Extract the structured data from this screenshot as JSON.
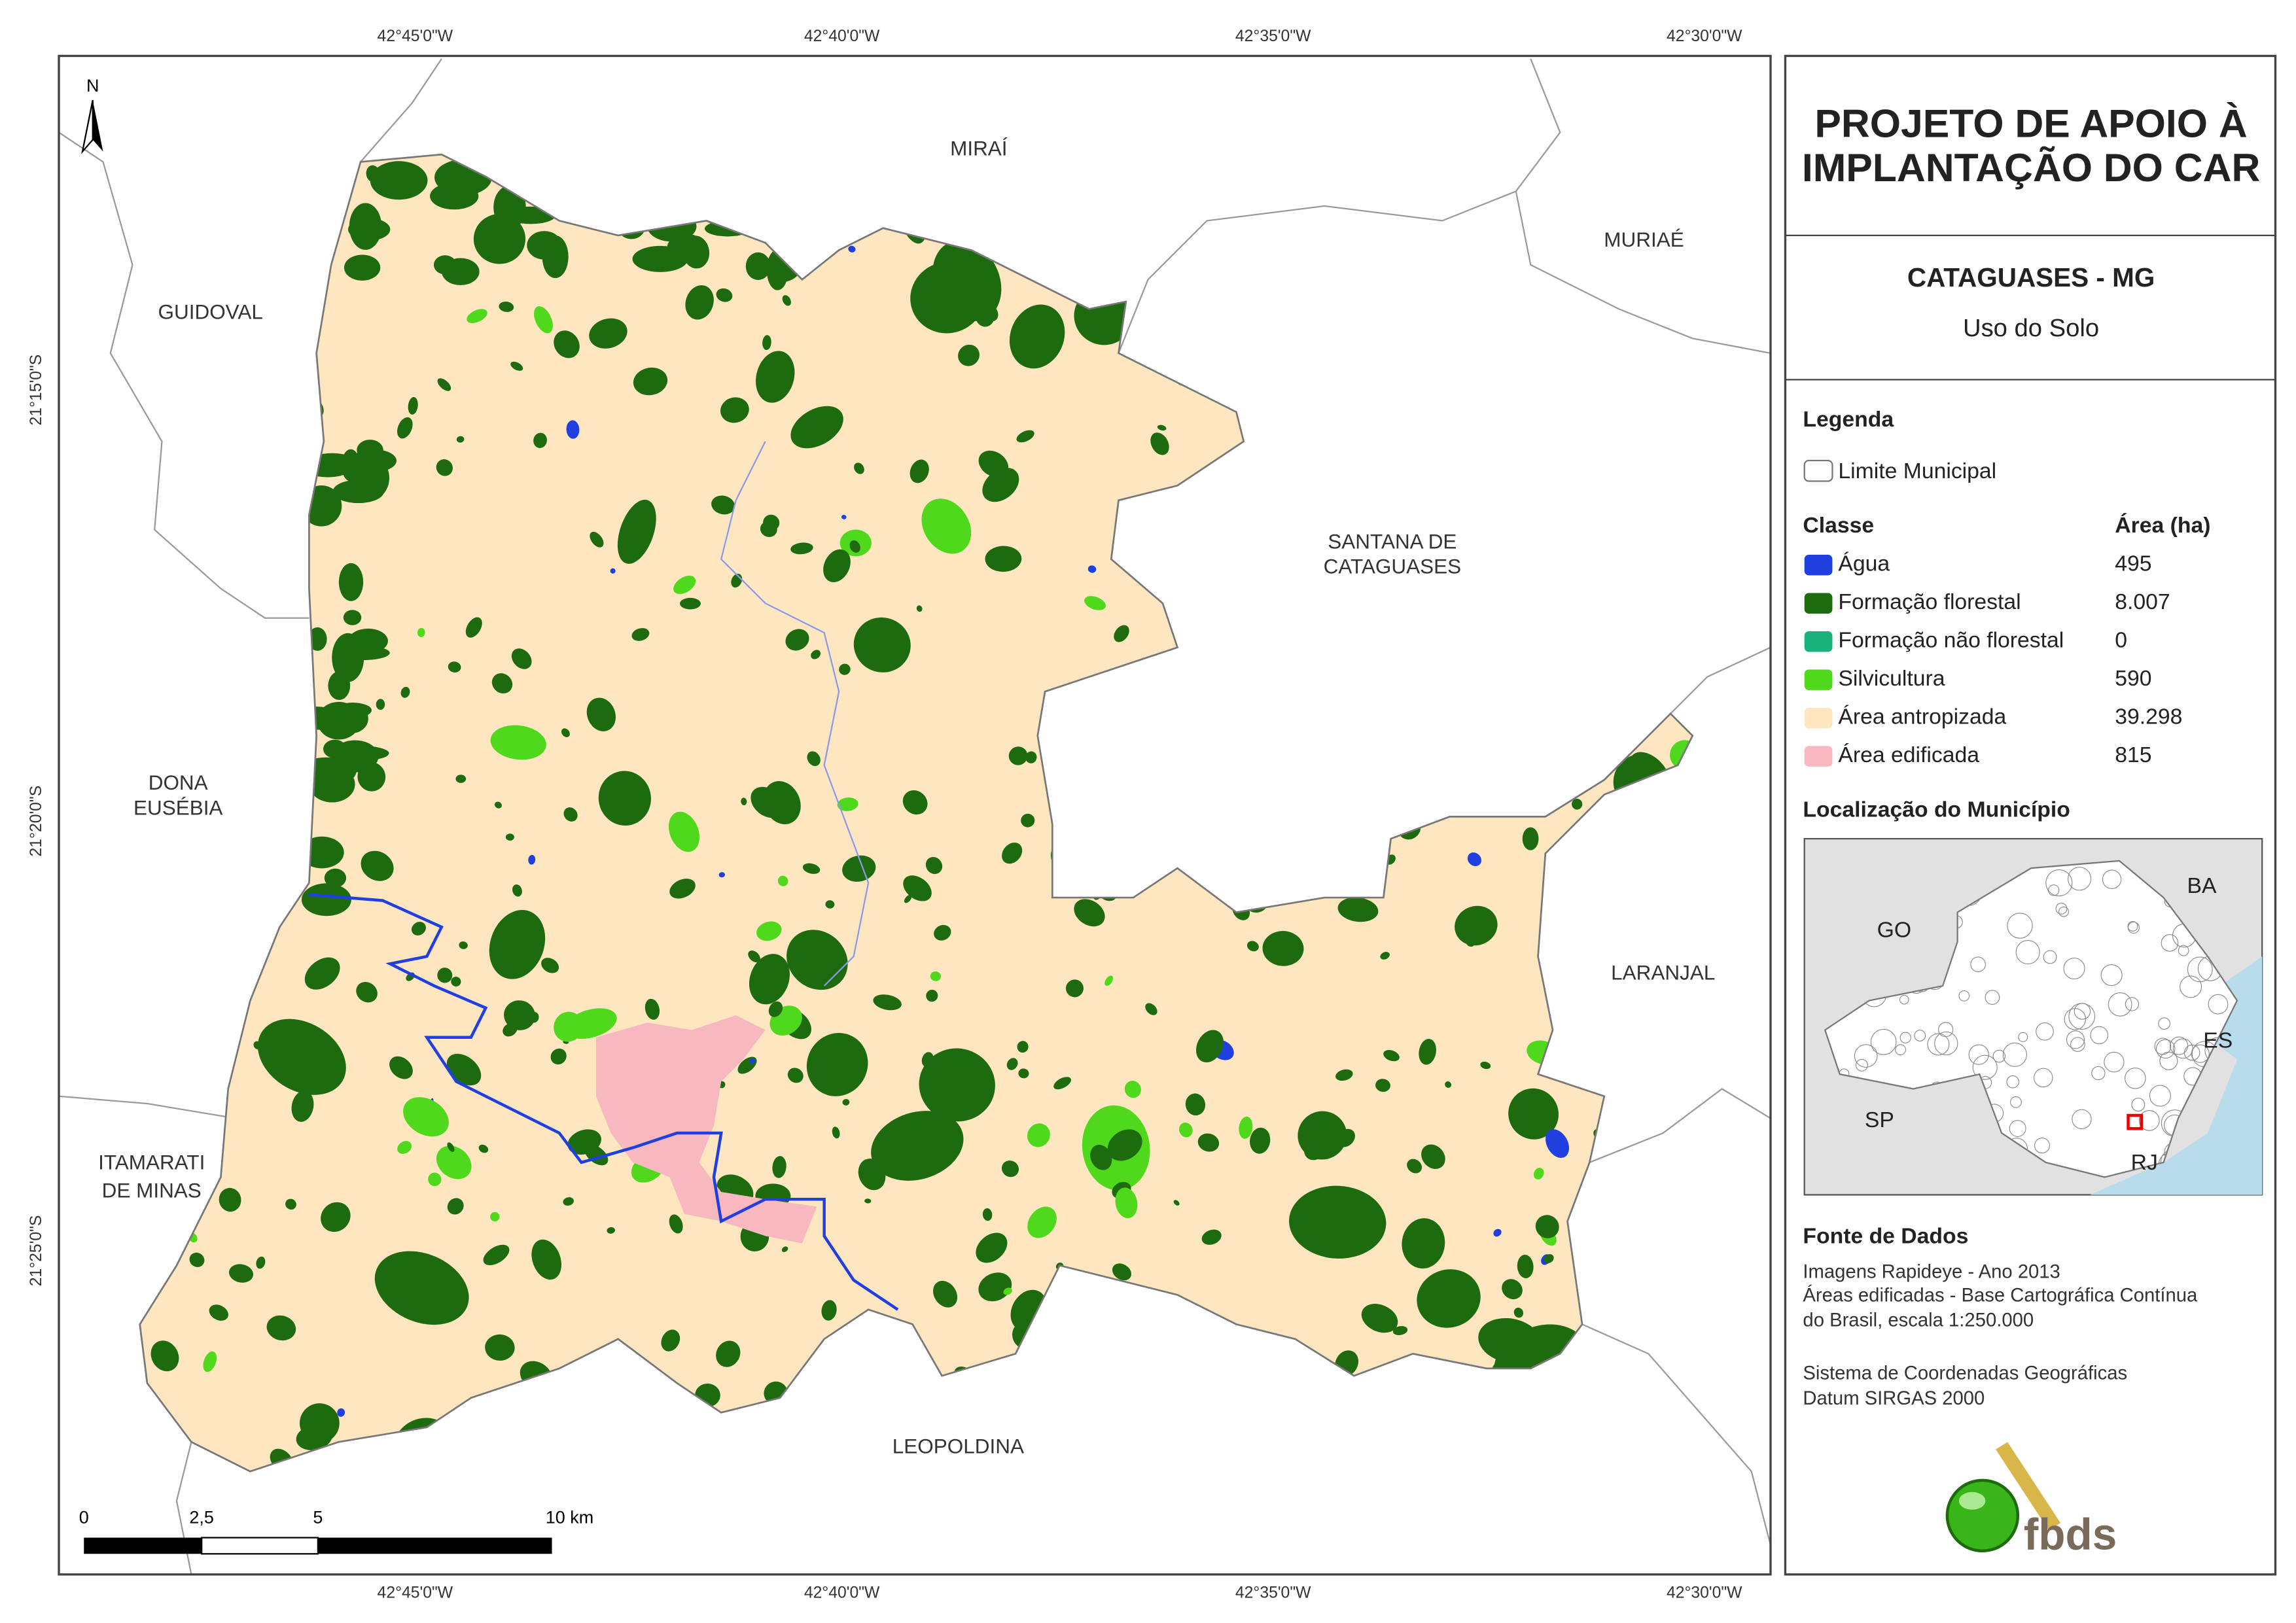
{
  "header": {
    "title": [
      "PROJETO DE APOIO À",
      "IMPLANTAÇÃO DO CAR"
    ],
    "subtitle": "CATAGUASES - MG",
    "theme": "Uso do Solo"
  },
  "map": {
    "north": "N",
    "top_ticks": [
      "42°45'0\"W",
      "42°40'0\"W",
      "42°35'0\"W",
      "42°30'0\"W"
    ],
    "bottom_ticks": [
      "42°45'0\"W",
      "42°40'0\"W",
      "42°35'0\"W",
      "42°30'0\"W"
    ],
    "left_ticks": [
      "21°15'0\"S",
      "21°20'0\"S",
      "21°25'0\"S"
    ],
    "neighbors": [
      [
        "MIRAÍ"
      ],
      [
        "MURIAÉ"
      ],
      [
        "GUIDOVAL"
      ],
      [
        "SANTANA DE",
        "CATAGUASES"
      ],
      [
        "DONA",
        "EUSÉBIA"
      ],
      [
        "LARANJAL"
      ],
      [
        "ITAMARATI",
        "DE MINAS"
      ],
      [
        "LEOPOLDINA"
      ]
    ],
    "scale_labels": [
      "0",
      "2,5",
      "5",
      "10 km"
    ]
  },
  "legend": {
    "heading": "Legenda",
    "boundary": "Limite Municipal",
    "class_heading": "Classe",
    "area_heading": "Área (ha)",
    "classes": [
      {
        "name": "Água",
        "area": "495",
        "color": "#1f3fe0"
      },
      {
        "name": "Formação florestal",
        "area": "8.007",
        "color": "#1e6b0f"
      },
      {
        "name": "Formação não florestal",
        "area": "0",
        "color": "#19b27d"
      },
      {
        "name": "Silvicultura",
        "area": "590",
        "color": "#4fd81c"
      },
      {
        "name": "Área antropizada",
        "area": "39.298",
        "color": "#fde6c0"
      },
      {
        "name": "Área edificada",
        "area": "815",
        "color": "#f7b8c0"
      }
    ]
  },
  "location": {
    "heading": "Localização do Município",
    "labels": [
      "BA",
      "GO",
      "ES",
      "SP",
      "RJ"
    ]
  },
  "sources": {
    "heading": "Fonte de Dados",
    "paragraphs": [
      [
        "Imagens Rapideye - Ano 2013",
        "Áreas edificadas - Base Cartográfica Contínua",
        "do Brasil, escala 1:250.000"
      ],
      [
        "Sistema de Coordenadas Geográficas",
        "Datum SIRGAS 2000"
      ]
    ]
  },
  "logo": "fbds"
}
